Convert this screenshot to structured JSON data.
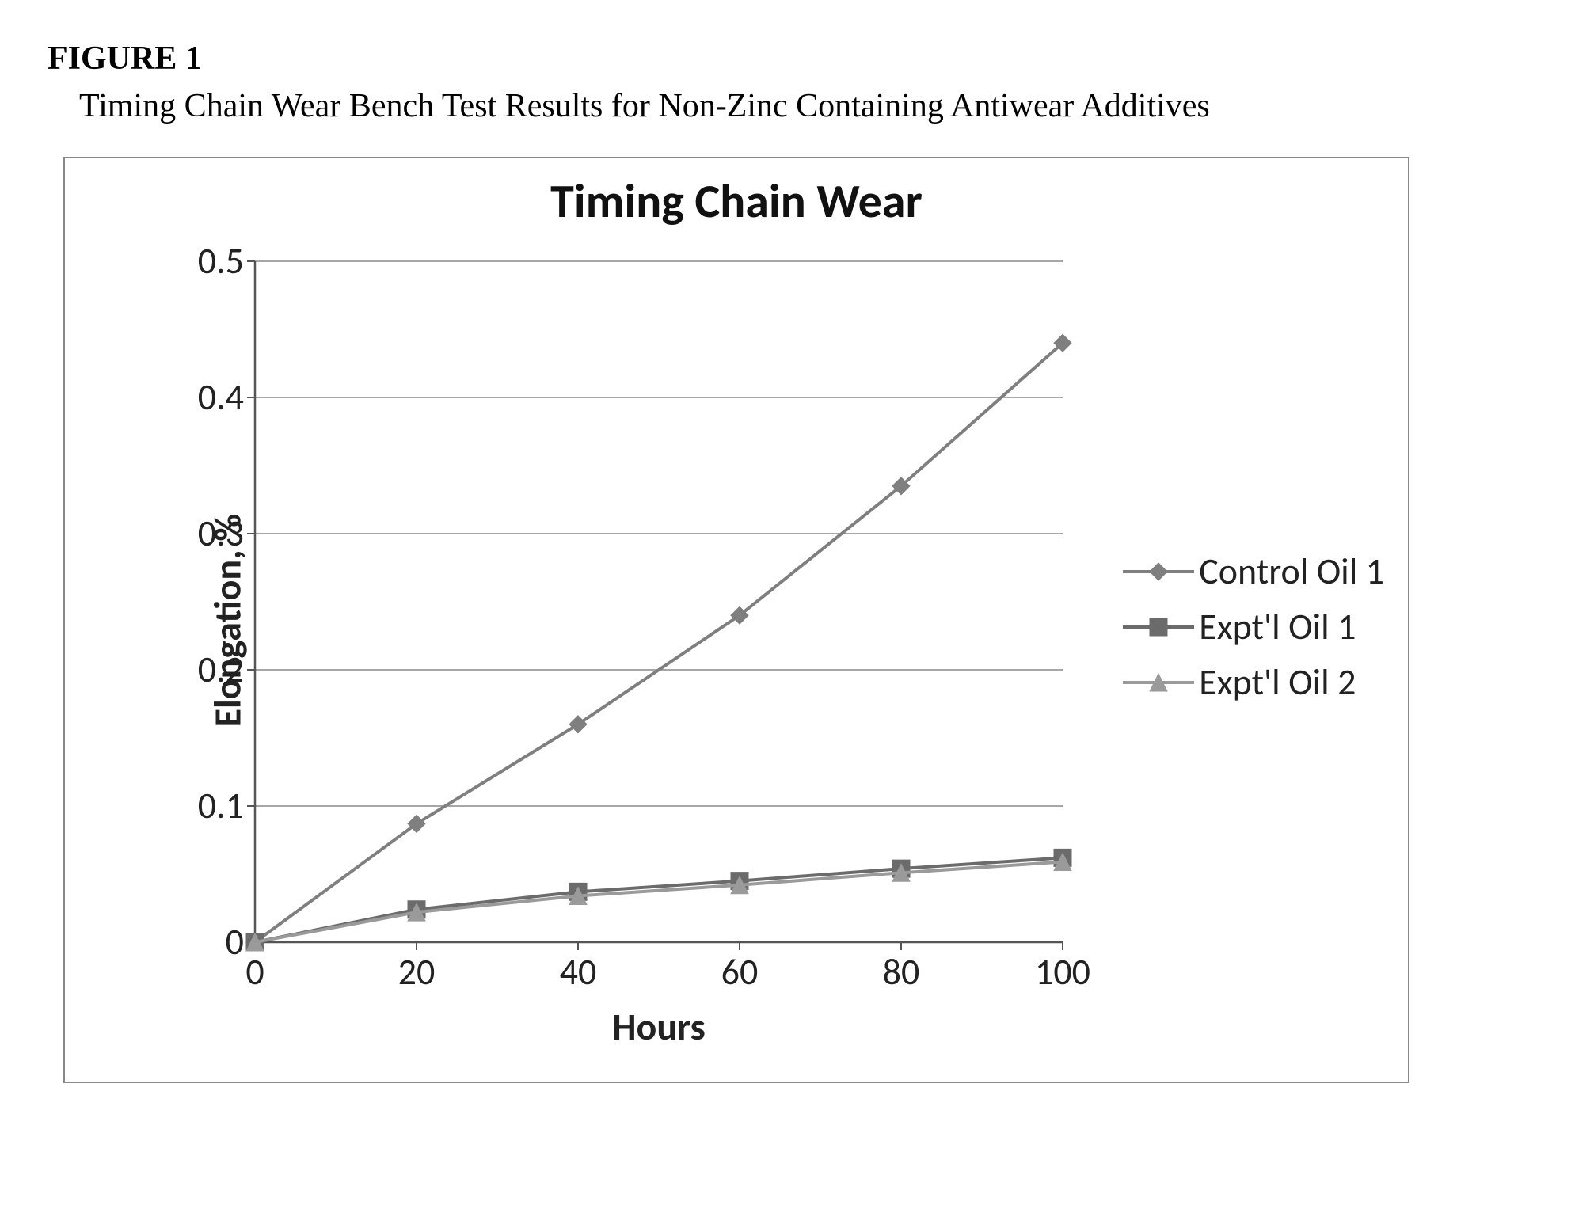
{
  "figure_label": "FIGURE 1",
  "subtitle": "Timing Chain Wear Bench Test Results for Non-Zinc Containing Antiwear Additives",
  "chart": {
    "type": "line",
    "title": "Timing Chain Wear",
    "title_fontsize": 60,
    "background_color": "#ffffff",
    "border_color": "#888888",
    "grid_color": "#888888",
    "axis_color": "#555555",
    "text_color": "#222222",
    "font_family": "Calibri",
    "x": {
      "label": "Hours",
      "label_fontsize": 48,
      "label_fontweight": "bold",
      "min": 0,
      "max": 100,
      "ticks": [
        0,
        20,
        40,
        60,
        80,
        100
      ],
      "tick_fontsize": 46
    },
    "y": {
      "label": "Elongation, %",
      "label_fontsize": 48,
      "label_fontweight": "bold",
      "min": 0,
      "max": 0.5,
      "ticks": [
        0,
        0.1,
        0.2,
        0.3,
        0.4,
        0.5
      ],
      "tick_fontsize": 46,
      "grid": true
    },
    "line_width": 4,
    "marker_size": 11,
    "series": [
      {
        "name": "Control Oil 1",
        "color": "#7f7f7f",
        "marker": "diamond",
        "x": [
          0,
          20,
          40,
          60,
          80,
          100
        ],
        "y": [
          0,
          0.087,
          0.16,
          0.24,
          0.335,
          0.44
        ]
      },
      {
        "name": "Expt'l Oil 1",
        "color": "#6b6b6b",
        "marker": "square",
        "x": [
          0,
          20,
          40,
          60,
          80,
          100
        ],
        "y": [
          0,
          0.024,
          0.037,
          0.045,
          0.054,
          0.062
        ]
      },
      {
        "name": "Expt'l Oil 2",
        "color": "#9a9a9a",
        "marker": "triangle",
        "x": [
          0,
          20,
          40,
          60,
          80,
          100
        ],
        "y": [
          0,
          0.022,
          0.034,
          0.042,
          0.051,
          0.059
        ]
      }
    ]
  }
}
